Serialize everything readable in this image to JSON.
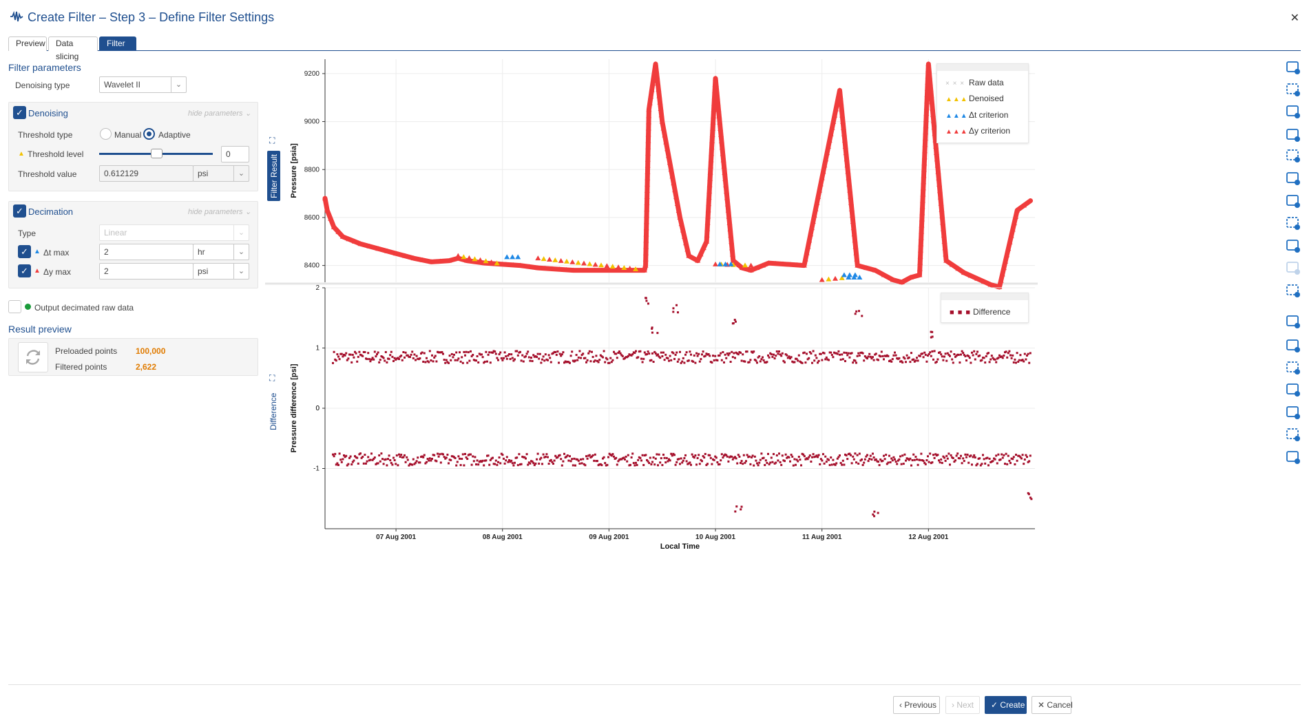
{
  "header": {
    "title": "Create Filter – Step 3 – Define Filter Settings"
  },
  "tabs": [
    {
      "label": "Preview"
    },
    {
      "label": "Data slicing"
    },
    {
      "label": "Filter"
    }
  ],
  "filter_parameters": {
    "title": "Filter parameters",
    "denoising_type_label": "Denoising type",
    "denoising_type_value": "Wavelet II"
  },
  "denoising": {
    "title": "Denoising",
    "hide_label": "hide parameters",
    "threshold_type_label": "Threshold type",
    "manual_label": "Manual",
    "adaptive_label": "Adaptive",
    "threshold_level_label": "Threshold level",
    "threshold_level_value": "0",
    "threshold_level_slider_fraction": 0.5,
    "threshold_value_label": "Threshold value",
    "threshold_value": "0.612129",
    "threshold_unit": "psi"
  },
  "decimation": {
    "title": "Decimation",
    "hide_label": "hide parameters",
    "type_label": "Type",
    "type_value": "Linear",
    "dt_label": "Δt max",
    "dt_value": "2",
    "dt_unit": "hr",
    "dy_label": "Δy max",
    "dy_value": "2",
    "dy_unit": "psi"
  },
  "output_decimated": {
    "label": "Output decimated raw data"
  },
  "result_preview": {
    "title": "Result preview",
    "preloaded_label": "Preloaded points",
    "preloaded_value": "100,000",
    "filtered_label": "Filtered points",
    "filtered_value": "2,622"
  },
  "side_labels": {
    "filter_result": "Filter Result",
    "difference": "Difference"
  },
  "legend_top": {
    "raw": "Raw data",
    "denoised": "Denoised",
    "dt": "Δt criterion",
    "dy": "Δy criterion"
  },
  "legend_bottom": {
    "difference": "Difference"
  },
  "footer": {
    "previous": "Previous",
    "next": "Next",
    "create": "Create",
    "cancel": "Cancel"
  },
  "colors": {
    "accent": "#1f4f8f",
    "denoised": "#f2c200",
    "dt_criterion": "#1e88e5",
    "dy_criterion": "#f03c3c",
    "difference": "#a50f2b",
    "orange_value": "#e07b00"
  },
  "icons": [
    "pan-hand-icon",
    "box-select-icon",
    "vertical-select-icon",
    "horizontal-select-icon",
    "zoom-icon",
    "zoom-box-icon",
    "home-icon",
    "zoom-region-icon",
    "undo-icon",
    "redo-icon",
    "fit-axis-icon",
    "crosshair-icon",
    "trend-icon",
    "grid-icon",
    "legend-icon",
    "pin-clock-icon",
    "brush-icon",
    "camera-icon"
  ],
  "chart_data": [
    {
      "type": "scatter",
      "title": "",
      "xlabel": "Local Time",
      "ylabel": "Pressure [psia]",
      "x_tick_labels": [
        "07 Aug 2001",
        "08 Aug 2001",
        "09 Aug 2001",
        "10 Aug 2001",
        "11 Aug 2001",
        "12 Aug 2001"
      ],
      "xlim": [
        "2001-08-06 08:00",
        "2001-08-13 00:00"
      ],
      "ylim": [
        8330,
        9260
      ],
      "y_ticks": [
        8400,
        8600,
        8800,
        9000,
        9200
      ],
      "grid": true,
      "legend_position": "top-right",
      "series": [
        {
          "name": "Δy criterion",
          "x": [
            "2001-08-06 08:00",
            "2001-08-06 08:30",
            "2001-08-06 10:00",
            "2001-08-06 12:00",
            "2001-08-06 16:00",
            "2001-08-06 20:00",
            "2001-08-07 00:00",
            "2001-08-07 04:00",
            "2001-08-07 08:00",
            "2001-08-07 12:00",
            "2001-08-07 14:00",
            "2001-08-07 16:00",
            "2001-08-07 20:00",
            "2001-08-08 04:00",
            "2001-08-08 08:00",
            "2001-08-08 16:00",
            "2001-08-09 00:00",
            "2001-08-09 08:00",
            "2001-08-09 08:15",
            "2001-08-09 09:00",
            "2001-08-09 10:30",
            "2001-08-09 12:00",
            "2001-08-09 14:00",
            "2001-08-09 16:00",
            "2001-08-09 18:00",
            "2001-08-09 20:00",
            "2001-08-09 22:00",
            "2001-08-10 00:00",
            "2001-08-10 04:00",
            "2001-08-10 06:00",
            "2001-08-10 08:00",
            "2001-08-10 12:00",
            "2001-08-10 20:00",
            "2001-08-11 04:00",
            "2001-08-11 08:00",
            "2001-08-11 12:00",
            "2001-08-11 14:00",
            "2001-08-11 16:00",
            "2001-08-11 18:00",
            "2001-08-11 20:00",
            "2001-08-11 22:00",
            "2001-08-12 00:00",
            "2001-08-12 04:00",
            "2001-08-12 08:00",
            "2001-08-12 14:00",
            "2001-08-12 16:00",
            "2001-08-12 20:00",
            "2001-08-12 23:00"
          ],
          "y": [
            8680,
            8630,
            8560,
            8520,
            8490,
            8470,
            8450,
            8430,
            8415,
            8420,
            8430,
            8420,
            8410,
            8400,
            8390,
            8380,
            8380,
            8380,
            8400,
            9050,
            9240,
            9000,
            8800,
            8600,
            8440,
            8420,
            8500,
            9180,
            8420,
            8390,
            8380,
            8410,
            8400,
            9130,
            8400,
            8380,
            8360,
            8340,
            8330,
            8350,
            8360,
            9240,
            8420,
            8370,
            8320,
            8310,
            8630,
            8670
          ]
        },
        {
          "name": "Denoised",
          "x": [
            "2001-08-07 14:00",
            "2001-08-08 00:00",
            "2001-08-08 08:00",
            "2001-08-09 06:00",
            "2001-08-10 00:00",
            "2001-08-10 08:00",
            "2001-08-11 00:00",
            "2001-08-11 06:00"
          ],
          "y": [
            8440,
            8405,
            8430,
            8385,
            8405,
            8400,
            8340,
            8350
          ]
        },
        {
          "name": "Δt criterion",
          "x": [
            "2001-08-08 01:00",
            "2001-08-10 01:00",
            "2001-08-11 05:00",
            "2001-08-11 06:00"
          ],
          "y": [
            8435,
            8405,
            8360,
            8350
          ]
        }
      ]
    },
    {
      "type": "scatter",
      "title": "",
      "xlabel": "Local Time",
      "ylabel": "Pressure difference [psi]",
      "x_tick_labels": [
        "07 Aug 2001",
        "08 Aug 2001",
        "09 Aug 2001",
        "10 Aug 2001",
        "11 Aug 2001",
        "12 Aug 2001"
      ],
      "xlim": [
        "2001-08-06 08:00",
        "2001-08-13 00:00"
      ],
      "ylim": [
        -2,
        2
      ],
      "y_ticks": [
        -1,
        0,
        1,
        2
      ],
      "grid": true,
      "legend_position": "top-right",
      "series": [
        {
          "name": "Difference",
          "bands": [
            {
              "y_center": 0.85,
              "y_spread": 0.1,
              "occurrence": "continuous"
            },
            {
              "y_center": -0.85,
              "y_spread": 0.1,
              "occurrence": "continuous"
            }
          ],
          "outliers_x": [
            "2001-08-09 08:00",
            "2001-08-09 10:00",
            "2001-08-09 15:00",
            "2001-08-10 04:00",
            "2001-08-10 05:00",
            "2001-08-11 08:00",
            "2001-08-11 12:00",
            "2001-08-12 00:00",
            "2001-08-12 23:00"
          ],
          "outliers_y": [
            1.8,
            1.3,
            1.65,
            1.4,
            -1.65,
            1.6,
            -1.75,
            1.2,
            -1.45
          ]
        }
      ]
    }
  ]
}
